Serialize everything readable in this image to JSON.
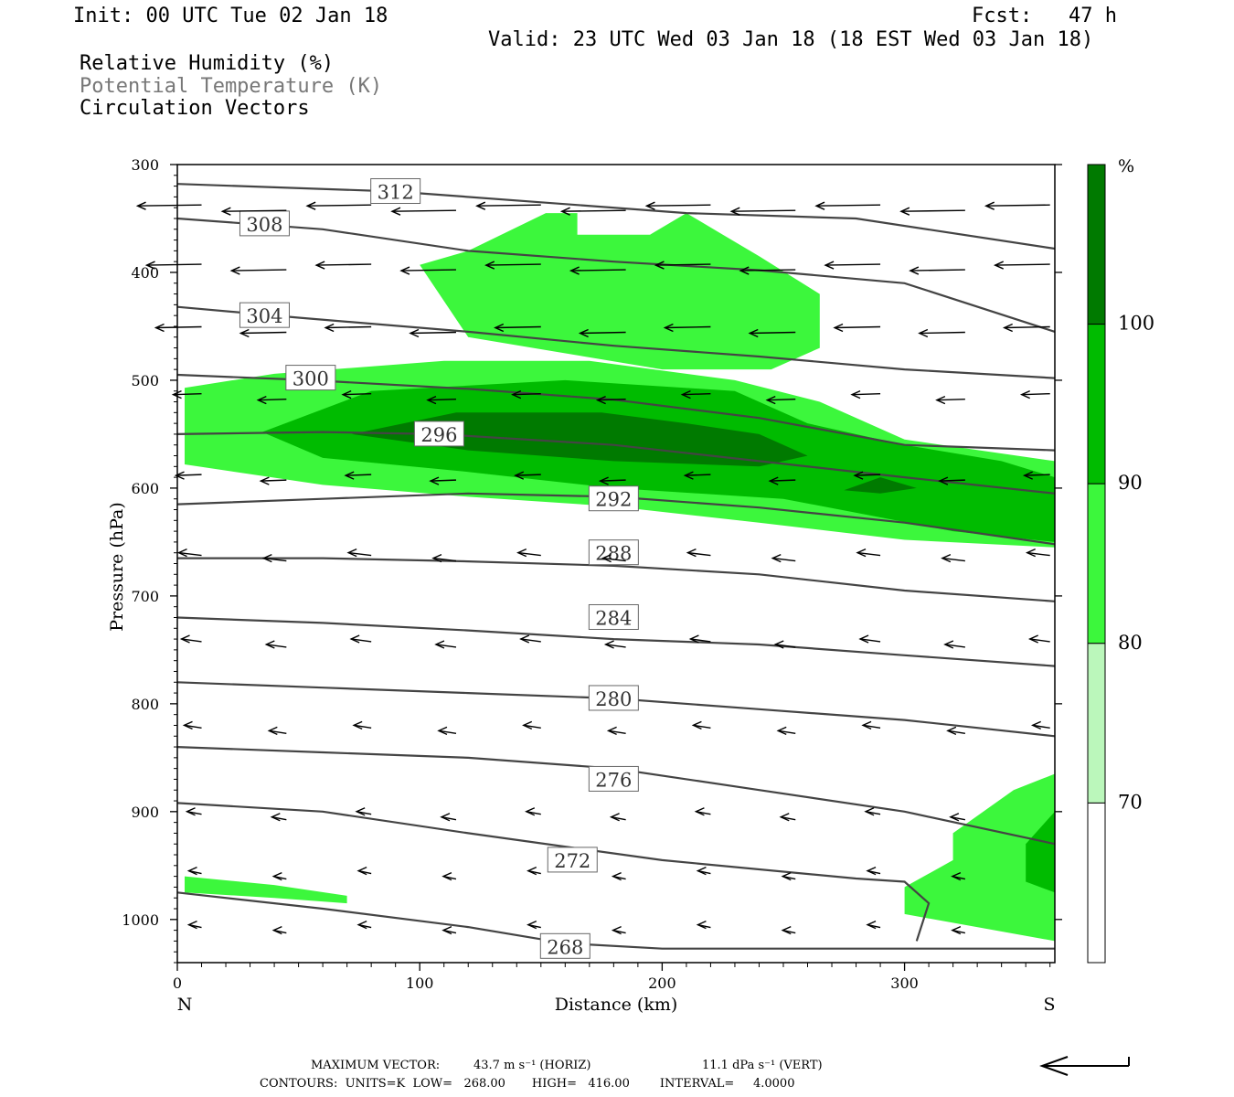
{
  "header": {
    "init": "Init: 00 UTC Tue 02 Jan 18",
    "fcst": "Fcst:   47 h",
    "valid": "Valid: 23 UTC Wed 03 Jan 18 (18 EST Wed 03 Jan 18)",
    "fields": [
      {
        "text": "Relative Humidity (%)",
        "color": "#000000"
      },
      {
        "text": "Potential Temperature (K)",
        "color": "#777777"
      },
      {
        "text": "Circulation Vectors",
        "color": "#000000"
      }
    ]
  },
  "chart_data": {
    "type": "cross-section",
    "ylabel": "Pressure (hPa)",
    "xlabel": "Distance (km)",
    "x_end_labels": [
      "N",
      "S"
    ],
    "xlim": [
      0,
      362
    ],
    "ylim": [
      1040,
      300
    ],
    "xticks": [
      0,
      100,
      200,
      300
    ],
    "yticks": [
      300,
      400,
      500,
      600,
      700,
      800,
      900,
      1000
    ],
    "rh_colorbar": {
      "unit": "%",
      "levels": [
        70,
        80,
        90,
        100
      ],
      "colors": [
        "#ffffff",
        "#bbf7bb",
        "#3cf73c",
        "#00bb00",
        "#007a00"
      ]
    },
    "rh_regions": [
      {
        "level": 80,
        "poly": [
          [
            3,
            507
          ],
          [
            40,
            494
          ],
          [
            110,
            482
          ],
          [
            170,
            482
          ],
          [
            230,
            500
          ],
          [
            265,
            520
          ],
          [
            300,
            555
          ],
          [
            362,
            575
          ],
          [
            362,
            655
          ],
          [
            300,
            648
          ],
          [
            240,
            632
          ],
          [
            180,
            617
          ],
          [
            120,
            608
          ],
          [
            60,
            597
          ],
          [
            3,
            578
          ]
        ]
      },
      {
        "level": 80,
        "poly": [
          [
            100,
            393
          ],
          [
            120,
            380
          ],
          [
            152,
            345
          ],
          [
            165,
            345
          ],
          [
            165,
            365
          ],
          [
            195,
            365
          ],
          [
            210,
            345
          ],
          [
            240,
            385
          ],
          [
            265,
            420
          ],
          [
            265,
            470
          ],
          [
            245,
            490
          ],
          [
            200,
            490
          ],
          [
            120,
            460
          ]
        ]
      },
      {
        "level": 80,
        "poly": [
          [
            3,
            960
          ],
          [
            40,
            968
          ],
          [
            70,
            978
          ],
          [
            70,
            985
          ],
          [
            40,
            980
          ],
          [
            3,
            975
          ]
        ]
      },
      {
        "level": 80,
        "poly": [
          [
            300,
            970
          ],
          [
            320,
            945
          ],
          [
            320,
            920
          ],
          [
            345,
            880
          ],
          [
            362,
            865
          ],
          [
            362,
            1020
          ],
          [
            300,
            995
          ]
        ]
      },
      {
        "level": 90,
        "poly": [
          [
            35,
            548
          ],
          [
            80,
            510
          ],
          [
            160,
            500
          ],
          [
            230,
            510
          ],
          [
            260,
            540
          ],
          [
            300,
            560
          ],
          [
            340,
            575
          ],
          [
            362,
            590
          ],
          [
            362,
            650
          ],
          [
            320,
            640
          ],
          [
            250,
            610
          ],
          [
            180,
            600
          ],
          [
            120,
            585
          ],
          [
            60,
            572
          ]
        ]
      },
      {
        "level": 90,
        "poly": [
          [
            350,
            930
          ],
          [
            362,
            900
          ],
          [
            362,
            975
          ],
          [
            350,
            965
          ]
        ]
      },
      {
        "level": 100,
        "poly": [
          [
            72,
            550
          ],
          [
            115,
            530
          ],
          [
            175,
            530
          ],
          [
            210,
            540
          ],
          [
            240,
            550
          ],
          [
            260,
            570
          ],
          [
            240,
            580
          ],
          [
            180,
            575
          ],
          [
            120,
            565
          ]
        ]
      },
      {
        "level": 100,
        "poly": [
          [
            275,
            602
          ],
          [
            290,
            590
          ],
          [
            305,
            600
          ],
          [
            290,
            605
          ]
        ]
      }
    ],
    "theta_contours": [
      {
        "value": 268,
        "label_at": [
          160,
          1025
        ],
        "points": [
          [
            0,
            975
          ],
          [
            60,
            990
          ],
          [
            120,
            1007
          ],
          [
            160,
            1022
          ],
          [
            200,
            1027
          ],
          [
            362,
            1027
          ]
        ]
      },
      {
        "value": 272,
        "label_at": [
          163,
          945
        ],
        "points": [
          [
            0,
            892
          ],
          [
            60,
            900
          ],
          [
            120,
            920
          ],
          [
            200,
            945
          ],
          [
            280,
            962
          ],
          [
            300,
            965
          ],
          [
            310,
            985
          ],
          [
            305,
            1020
          ]
        ]
      },
      {
        "value": 276,
        "label_at": [
          180,
          870
        ],
        "points": [
          [
            0,
            840
          ],
          [
            60,
            845
          ],
          [
            120,
            850
          ],
          [
            180,
            860
          ],
          [
            240,
            880
          ],
          [
            300,
            900
          ],
          [
            362,
            930
          ]
        ]
      },
      {
        "value": 280,
        "label_at": [
          180,
          795
        ],
        "points": [
          [
            0,
            780
          ],
          [
            60,
            785
          ],
          [
            120,
            790
          ],
          [
            180,
            795
          ],
          [
            240,
            805
          ],
          [
            300,
            815
          ],
          [
            362,
            830
          ]
        ]
      },
      {
        "value": 284,
        "label_at": [
          180,
          720
        ],
        "points": [
          [
            0,
            720
          ],
          [
            60,
            725
          ],
          [
            120,
            732
          ],
          [
            180,
            740
          ],
          [
            240,
            745
          ],
          [
            300,
            755
          ],
          [
            362,
            765
          ]
        ]
      },
      {
        "value": 288,
        "label_at": [
          180,
          660
        ],
        "points": [
          [
            0,
            665
          ],
          [
            60,
            665
          ],
          [
            120,
            668
          ],
          [
            180,
            672
          ],
          [
            240,
            680
          ],
          [
            300,
            695
          ],
          [
            362,
            705
          ]
        ]
      },
      {
        "value": 292,
        "label_at": [
          180,
          610
        ],
        "points": [
          [
            0,
            615
          ],
          [
            60,
            610
          ],
          [
            120,
            605
          ],
          [
            180,
            608
          ],
          [
            240,
            618
          ],
          [
            300,
            632
          ],
          [
            362,
            652
          ]
        ]
      },
      {
        "value": 296,
        "label_at": [
          108,
          550
        ],
        "points": [
          [
            0,
            550
          ],
          [
            60,
            548
          ],
          [
            108,
            550
          ],
          [
            180,
            560
          ],
          [
            240,
            575
          ],
          [
            300,
            590
          ],
          [
            362,
            605
          ]
        ]
      },
      {
        "value": 300,
        "label_at": [
          55,
          498
        ],
        "points": [
          [
            0,
            495
          ],
          [
            55,
            500
          ],
          [
            120,
            508
          ],
          [
            180,
            518
          ],
          [
            240,
            535
          ],
          [
            300,
            560
          ],
          [
            362,
            565
          ]
        ]
      },
      {
        "value": 304,
        "label_at": [
          36,
          440
        ],
        "points": [
          [
            0,
            432
          ],
          [
            50,
            442
          ],
          [
            120,
            455
          ],
          [
            180,
            468
          ],
          [
            240,
            478
          ],
          [
            300,
            490
          ],
          [
            362,
            498
          ]
        ]
      },
      {
        "value": 308,
        "label_at": [
          36,
          355
        ],
        "points": [
          [
            0,
            350
          ],
          [
            60,
            360
          ],
          [
            120,
            380
          ],
          [
            180,
            390
          ],
          [
            240,
            398
          ],
          [
            300,
            410
          ],
          [
            362,
            455
          ]
        ]
      },
      {
        "value": 312,
        "label_at": [
          90,
          325
        ],
        "points": [
          [
            0,
            318
          ],
          [
            90,
            325
          ],
          [
            150,
            335
          ],
          [
            210,
            345
          ],
          [
            280,
            350
          ],
          [
            362,
            378
          ]
        ]
      }
    ],
    "max_vector": {
      "horiz": "43.7 m s⁻¹ (HORIZ)",
      "vert": "11.1 dPa s⁻¹ (VERT)"
    },
    "contour_info": {
      "units": "K",
      "low": "268.00",
      "high": "416.00",
      "interval": "4.0000"
    }
  },
  "footer": {
    "max_vector_label": "MAXIMUM VECTOR:",
    "max_vector_horiz": "43.7 m s⁻¹ (HORIZ)",
    "max_vector_vert": "11.1 dPa s⁻¹ (VERT)",
    "contours_line": "CONTOURS:  UNITS=K  LOW=   268.00       HIGH=   416.00        INTERVAL=     4.0000"
  }
}
